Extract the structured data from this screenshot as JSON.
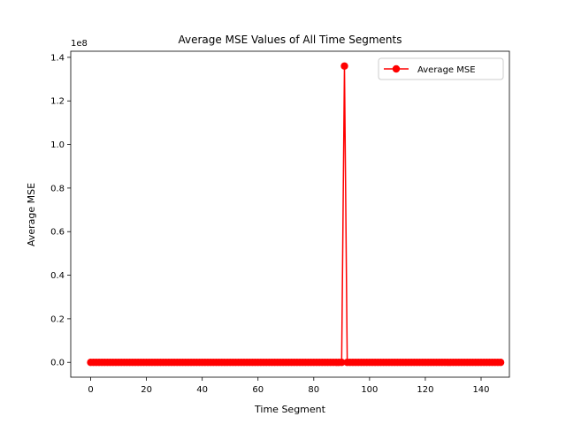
{
  "chart_data": {
    "type": "line",
    "title": "Average MSE Values of All Time Segments",
    "xlabel": "Time Segment",
    "ylabel": "Average MSE",
    "y_offset_label": "1e8",
    "xlim": [
      -7.15,
      150.15
    ],
    "ylim": [
      -6800000,
      142800000
    ],
    "x_ticks": [
      0,
      20,
      40,
      60,
      80,
      100,
      120,
      140
    ],
    "x_tick_labels": [
      "0",
      "20",
      "40",
      "60",
      "80",
      "100",
      "120",
      "140"
    ],
    "y_ticks": [
      0,
      20000000,
      40000000,
      60000000,
      80000000,
      100000000,
      120000000,
      140000000
    ],
    "y_tick_labels": [
      "0.0",
      "0.2",
      "0.4",
      "0.6",
      "0.8",
      "1.0",
      "1.2",
      "1.4"
    ],
    "grid": false,
    "legend_position": "top-right",
    "series": [
      {
        "name": "Average MSE",
        "color": "#ff0000",
        "marker": "circle",
        "x_start": 0,
        "values": [
          0,
          0,
          0,
          0,
          0,
          0,
          0,
          0,
          0,
          0,
          0,
          0,
          0,
          0,
          0,
          0,
          0,
          0,
          0,
          0,
          0,
          0,
          0,
          0,
          0,
          0,
          0,
          0,
          0,
          0,
          0,
          0,
          0,
          0,
          0,
          0,
          0,
          0,
          0,
          0,
          0,
          0,
          0,
          0,
          0,
          0,
          0,
          0,
          0,
          0,
          0,
          0,
          0,
          0,
          0,
          0,
          0,
          0,
          0,
          0,
          0,
          0,
          0,
          0,
          0,
          0,
          0,
          0,
          0,
          0,
          0,
          0,
          0,
          0,
          0,
          0,
          0,
          0,
          0,
          0,
          0,
          0,
          0,
          0,
          0,
          0,
          0,
          0,
          0,
          0,
          0,
          136000000,
          0,
          0,
          0,
          0,
          0,
          0,
          0,
          0,
          0,
          0,
          0,
          0,
          0,
          0,
          0,
          0,
          0,
          0,
          0,
          0,
          0,
          0,
          0,
          0,
          0,
          0,
          0,
          0,
          0,
          0,
          0,
          0,
          0,
          0,
          0,
          0,
          0,
          0,
          0,
          0,
          0,
          0,
          0,
          0,
          0,
          0,
          0,
          0,
          0,
          0,
          0,
          0,
          0,
          0,
          0,
          0
        ]
      }
    ]
  }
}
